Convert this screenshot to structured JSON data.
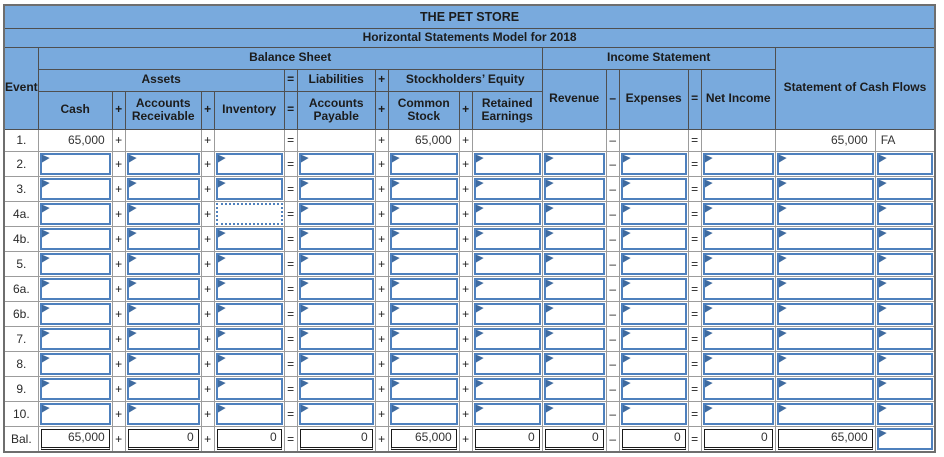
{
  "window": {
    "title": "THE PET STORE",
    "subtitle": "Horizontal Statements Model for 2018"
  },
  "sections": {
    "balance_sheet": "Balance Sheet",
    "income_statement": "Income Statement",
    "cash_flows": "Statement of Cash Flows"
  },
  "columns": {
    "event": "Event",
    "assets": "Assets",
    "liabilities": "Liabilities",
    "stockholders_equity": "Stockholders’ Equity",
    "cash": "Cash",
    "accounts_receivable": "Accounts Receivable",
    "inventory": "Inventory",
    "accounts_payable": "Accounts Payable",
    "common_stock": "Common Stock",
    "retained_earnings": "Retained Earnings",
    "revenue": "Revenue",
    "expenses": "Expenses",
    "net_income": "Net Income"
  },
  "operators": {
    "plus": "+",
    "minus": "–",
    "equals": "="
  },
  "colors": {
    "header_blue": "#79aadd",
    "input_border_blue": "#4e80bd",
    "flag_blue": "#3f6ba0",
    "grid_gray": "#9c9c9c",
    "total_border": "#1a1a1a"
  },
  "rows": [
    {
      "event": "1.",
      "kind": "static",
      "cells": {
        "cash": "65,000",
        "ar": "",
        "inventory": "",
        "ap": "",
        "cs": "65,000",
        "re": "",
        "revenue": "",
        "expenses": "",
        "ni": "",
        "cf_amount": "65,000",
        "cf_type": "FA"
      }
    },
    {
      "event": "2.",
      "kind": "input",
      "cells": {
        "cash": "",
        "ar": "",
        "inventory": "",
        "ap": "",
        "cs": "",
        "re": "",
        "revenue": "",
        "expenses": "",
        "ni": "",
        "cf_amount": "",
        "cf_type": ""
      }
    },
    {
      "event": "3.",
      "kind": "input",
      "cells": {
        "cash": "",
        "ar": "",
        "inventory": "",
        "ap": "",
        "cs": "",
        "re": "",
        "revenue": "",
        "expenses": "",
        "ni": "",
        "cf_amount": "",
        "cf_type": ""
      }
    },
    {
      "event": "4a.",
      "kind": "input",
      "focus": "inventory",
      "cells": {
        "cash": "",
        "ar": "",
        "inventory": "",
        "ap": "",
        "cs": "",
        "re": "",
        "revenue": "",
        "expenses": "",
        "ni": "",
        "cf_amount": "",
        "cf_type": ""
      }
    },
    {
      "event": "4b.",
      "kind": "input",
      "cells": {
        "cash": "",
        "ar": "",
        "inventory": "",
        "ap": "",
        "cs": "",
        "re": "",
        "revenue": "",
        "expenses": "",
        "ni": "",
        "cf_amount": "",
        "cf_type": ""
      }
    },
    {
      "event": "5.",
      "kind": "input",
      "cells": {
        "cash": "",
        "ar": "",
        "inventory": "",
        "ap": "",
        "cs": "",
        "re": "",
        "revenue": "",
        "expenses": "",
        "ni": "",
        "cf_amount": "",
        "cf_type": ""
      }
    },
    {
      "event": "6a.",
      "kind": "input",
      "cells": {
        "cash": "",
        "ar": "",
        "inventory": "",
        "ap": "",
        "cs": "",
        "re": "",
        "revenue": "",
        "expenses": "",
        "ni": "",
        "cf_amount": "",
        "cf_type": ""
      }
    },
    {
      "event": "6b.",
      "kind": "input",
      "cells": {
        "cash": "",
        "ar": "",
        "inventory": "",
        "ap": "",
        "cs": "",
        "re": "",
        "revenue": "",
        "expenses": "",
        "ni": "",
        "cf_amount": "",
        "cf_type": ""
      }
    },
    {
      "event": "7.",
      "kind": "input",
      "cells": {
        "cash": "",
        "ar": "",
        "inventory": "",
        "ap": "",
        "cs": "",
        "re": "",
        "revenue": "",
        "expenses": "",
        "ni": "",
        "cf_amount": "",
        "cf_type": ""
      }
    },
    {
      "event": "8.",
      "kind": "input",
      "cells": {
        "cash": "",
        "ar": "",
        "inventory": "",
        "ap": "",
        "cs": "",
        "re": "",
        "revenue": "",
        "expenses": "",
        "ni": "",
        "cf_amount": "",
        "cf_type": ""
      }
    },
    {
      "event": "9.",
      "kind": "input",
      "cells": {
        "cash": "",
        "ar": "",
        "inventory": "",
        "ap": "",
        "cs": "",
        "re": "",
        "revenue": "",
        "expenses": "",
        "ni": "",
        "cf_amount": "",
        "cf_type": ""
      }
    },
    {
      "event": "10.",
      "kind": "input",
      "cells": {
        "cash": "",
        "ar": "",
        "inventory": "",
        "ap": "",
        "cs": "",
        "re": "",
        "revenue": "",
        "expenses": "",
        "ni": "",
        "cf_amount": "",
        "cf_type": ""
      }
    },
    {
      "event": "Bal.",
      "kind": "total",
      "cells": {
        "cash": "65,000",
        "ar": "0",
        "inventory": "0",
        "ap": "0",
        "cs": "65,000",
        "re": "0",
        "revenue": "0",
        "expenses": "0",
        "ni": "0",
        "cf_amount": "65,000",
        "cf_type": ""
      }
    }
  ]
}
